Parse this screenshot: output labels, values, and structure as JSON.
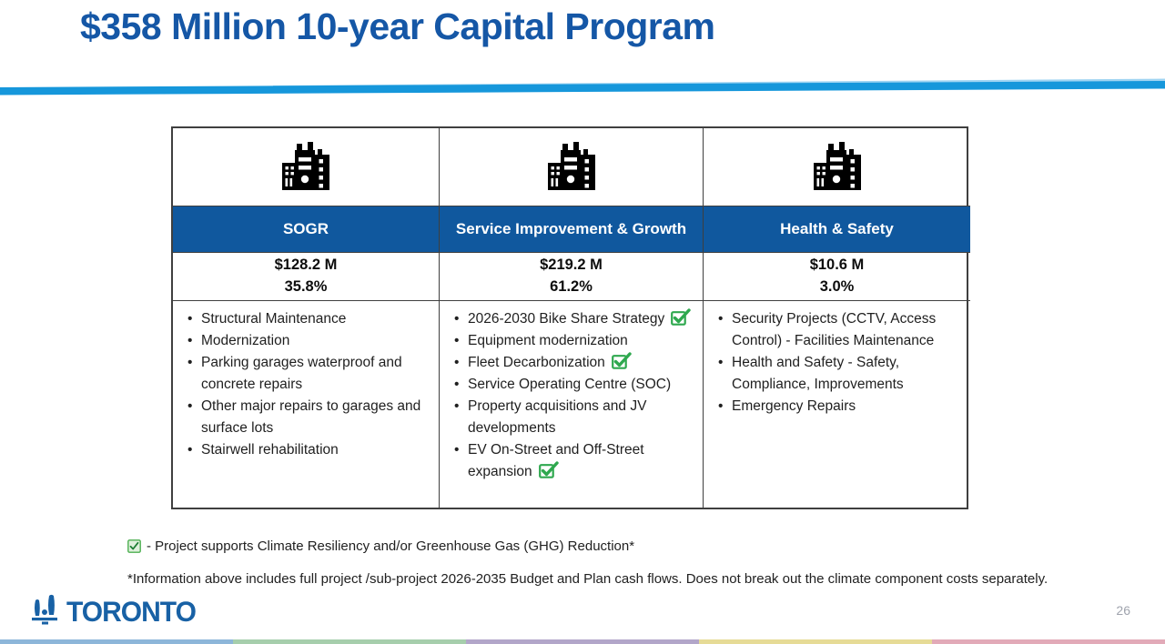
{
  "slide": {
    "title": "$358 Million 10-year Capital Program",
    "page_number": "26"
  },
  "colors": {
    "title_blue": "#1557A6",
    "divider_blue": "#1697DB",
    "divider_highlight": "#9FD4F2",
    "header_blue": "#10589E",
    "check_green": "#2EA84E",
    "legend_check_fill": "#DFF0DC",
    "legend_check_border": "#4CAF50",
    "border_dark": "#3f3f3f",
    "stripe": [
      "#8DB6D9",
      "#A6CEAC",
      "#B2A6C9",
      "#E6DB96",
      "#E2AAB8"
    ]
  },
  "table": {
    "columns": [
      {
        "icon": "buildings-icon",
        "header": "SOGR",
        "amount": "$128.2 M",
        "percent": "35.8%",
        "items": [
          {
            "text": "Structural Maintenance",
            "check": false
          },
          {
            "text": "Modernization",
            "check": false
          },
          {
            "text": "Parking garages waterproof and concrete repairs",
            "check": false
          },
          {
            "text": "Other major repairs to garages and surface lots",
            "check": false
          },
          {
            "text": "Stairwell rehabilitation",
            "check": false
          }
        ]
      },
      {
        "icon": "buildings-icon",
        "header": "Service Improvement & Growth",
        "amount": "$219.2 M",
        "percent": "61.2%",
        "items": [
          {
            "text": "2026-2030 Bike Share Strategy",
            "check": true
          },
          {
            "text": "Equipment modernization",
            "check": false
          },
          {
            "text": "Fleet Decarbonization",
            "check": true
          },
          {
            "text": "Service Operating Centre (SOC)",
            "check": false
          },
          {
            "text": "Property acquisitions and JV developments",
            "check": false
          },
          {
            "text": "EV On-Street and Off-Street expansion",
            "check": true
          }
        ]
      },
      {
        "icon": "buildings-icon",
        "header": "Health & Safety",
        "amount": "$10.6 M",
        "percent": "3.0%",
        "items": [
          {
            "text": "Security Projects (CCTV, Access Control) - Facilities Maintenance",
            "check": false
          },
          {
            "text": "Health and Safety - Safety, Compliance, Improvements",
            "check": false
          },
          {
            "text": "Emergency Repairs",
            "check": false
          }
        ]
      }
    ]
  },
  "legend": {
    "icon": "green-checkbox-icon",
    "text": "- Project supports Climate Resiliency and/or Greenhouse Gas (GHG) Reduction*"
  },
  "footnote": "*Information above includes full project /sub-project 2026-2035 Budget and Plan cash flows. Does not break out the climate component costs separately.",
  "footer": {
    "logo_text": "Toronto"
  }
}
